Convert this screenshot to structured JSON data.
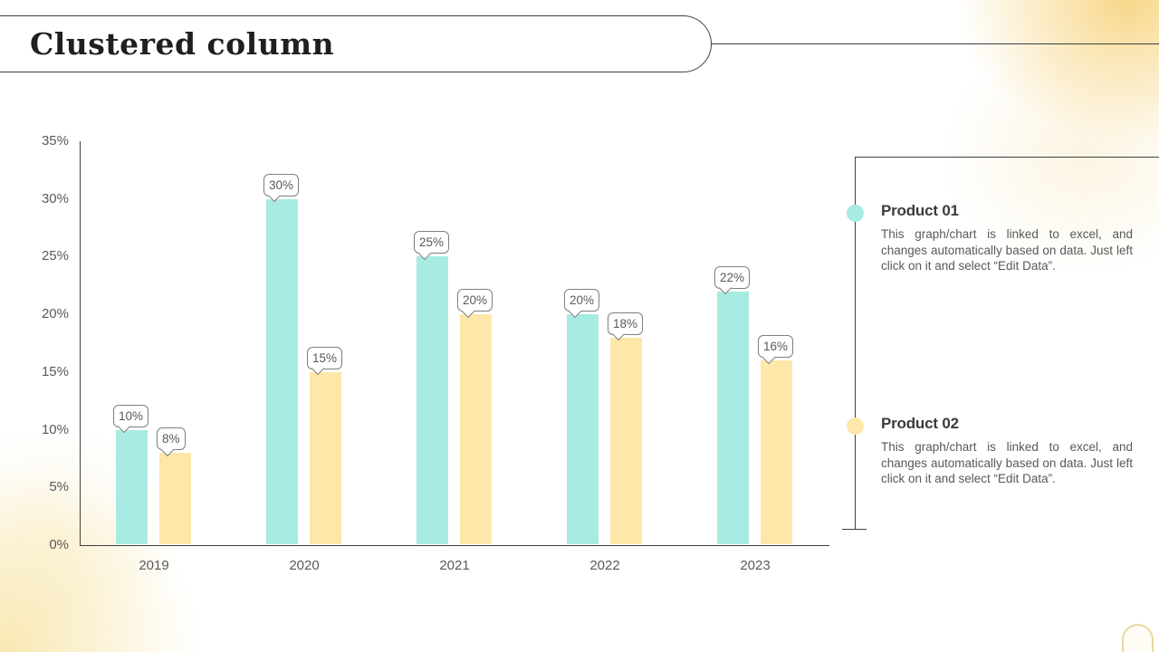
{
  "slide": {
    "title": "Clustered column"
  },
  "chart_data": {
    "type": "bar",
    "title": "",
    "xlabel": "",
    "ylabel": "",
    "categories": [
      "2019",
      "2020",
      "2021",
      "2022",
      "2023"
    ],
    "series": [
      {
        "name": "Product 01",
        "color": "#a8ebe2",
        "values": [
          10,
          30,
          25,
          20,
          22
        ]
      },
      {
        "name": "Product 02",
        "color": "#fde7a9",
        "values": [
          8,
          15,
          20,
          18,
          16
        ]
      }
    ],
    "ylim": [
      0,
      35
    ],
    "ytick_step": 5,
    "ytick_labels": [
      "0%",
      "5%",
      "10%",
      "15%",
      "20%",
      "25%",
      "30%",
      "35%"
    ],
    "data_label_suffix": "%",
    "grid": false,
    "legend_position": "right"
  },
  "legend": {
    "items": [
      {
        "name": "Product 01",
        "color": "#a8ebe2",
        "description": "This graph/chart is linked to excel, and changes automatically based on data. Just left click on it and select “Edit Data”."
      },
      {
        "name": "Product 02",
        "color": "#fde7a9",
        "description": "This graph/chart is linked to excel, and changes automatically based on data. Just left click on it and select “Edit Data”."
      }
    ]
  }
}
